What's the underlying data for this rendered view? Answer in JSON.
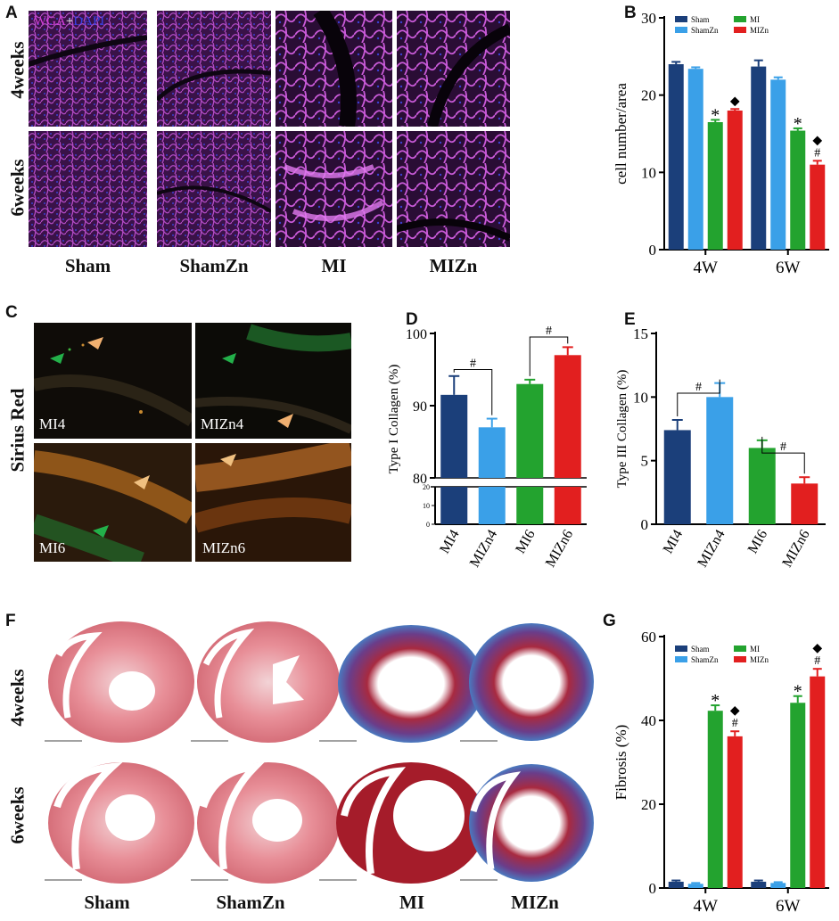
{
  "panel_letters": {
    "A": "A",
    "B": "B",
    "C": "C",
    "D": "D",
    "E": "E",
    "F": "F",
    "G": "G"
  },
  "panel_a": {
    "stain_label_wga": "WGA",
    "stain_label_plus": "+",
    "stain_label_dapi": "DAPI",
    "rows": [
      "4weeks",
      "6weeks"
    ],
    "columns": [
      "Sham",
      "ShamZn",
      "MI",
      "MIZn"
    ]
  },
  "panel_c": {
    "row_label": "Sirius Red",
    "tiles": [
      "MI4",
      "MIZn4",
      "MI6",
      "MIZn6"
    ]
  },
  "panel_f": {
    "rows": [
      "4weeks",
      "6weeks"
    ],
    "columns": [
      "Sham",
      "ShamZn",
      "MI",
      "MIZn"
    ]
  },
  "colors": {
    "sham": "#1b3f7a",
    "shamzn": "#3aa0e8",
    "mi": "#23a32f",
    "mizn": "#e21f1f"
  },
  "chart_data": [
    {
      "panel": "B",
      "type": "bar",
      "ylabel": "cell number/area",
      "ylim": [
        0,
        30
      ],
      "yticks": [
        0,
        10,
        20,
        30
      ],
      "categories": [
        "4W",
        "6W"
      ],
      "series": [
        {
          "name": "Sham",
          "values": [
            24.0,
            23.7
          ],
          "errors": [
            0.3,
            0.8
          ]
        },
        {
          "name": "ShamZn",
          "values": [
            23.4,
            22.0
          ],
          "errors": [
            0.2,
            0.3
          ]
        },
        {
          "name": "MI",
          "values": [
            16.5,
            15.4
          ],
          "errors": [
            0.3,
            0.3
          ]
        },
        {
          "name": "MIZn",
          "values": [
            18.0,
            11.0
          ],
          "errors": [
            0.2,
            0.5
          ]
        }
      ],
      "annotations": [
        {
          "category": "4W",
          "series": "MI",
          "marks": [
            "*"
          ]
        },
        {
          "category": "4W",
          "series": "MIZn",
          "marks": [
            "◆"
          ]
        },
        {
          "category": "6W",
          "series": "MI",
          "marks": [
            "*"
          ]
        },
        {
          "category": "6W",
          "series": "MIZn",
          "marks": [
            "#",
            "◆"
          ]
        }
      ],
      "legend_position": "top"
    },
    {
      "panel": "D",
      "type": "bar",
      "ylabel": "Type I Collagen (%)",
      "categories": [
        "MI4",
        "MIZn4",
        "MI6",
        "MIZn6"
      ],
      "values": [
        91.5,
        87.0,
        93.0,
        97.0
      ],
      "errors": [
        2.6,
        1.2,
        0.6,
        1.1
      ],
      "axis_break": true,
      "upper_ylim": [
        80,
        100
      ],
      "upper_yticks": [
        80,
        90,
        100
      ],
      "lower_ylim": [
        0,
        20
      ],
      "lower_yticks": [
        0,
        10,
        20
      ],
      "comparisons": [
        {
          "pair": [
            "MI4",
            "MIZn4"
          ],
          "mark": "#"
        },
        {
          "pair": [
            "MI6",
            "MIZn6"
          ],
          "mark": "#"
        }
      ]
    },
    {
      "panel": "E",
      "type": "bar",
      "ylabel": "Type III Collagen (%)",
      "categories": [
        "MI4",
        "MIZn4",
        "MI6",
        "MIZn6"
      ],
      "values": [
        7.4,
        10.0,
        6.0,
        3.2
      ],
      "errors": [
        0.8,
        1.1,
        0.6,
        0.5
      ],
      "ylim": [
        0,
        15
      ],
      "yticks": [
        0,
        5,
        10,
        15
      ],
      "comparisons": [
        {
          "pair": [
            "MI4",
            "MIZn4"
          ],
          "mark": "#"
        },
        {
          "pair": [
            "MI6",
            "MIZn6"
          ],
          "mark": "#"
        }
      ]
    },
    {
      "panel": "G",
      "type": "bar",
      "ylabel": "Fibrosis (%)",
      "ylim": [
        0,
        60
      ],
      "yticks": [
        0,
        20,
        40,
        60
      ],
      "categories": [
        "4W",
        "6W"
      ],
      "series": [
        {
          "name": "Sham",
          "values": [
            1.5,
            1.5
          ],
          "errors": [
            0.3,
            0.3
          ]
        },
        {
          "name": "ShamZn",
          "values": [
            1.0,
            1.2
          ],
          "errors": [
            0.2,
            0.2
          ]
        },
        {
          "name": "MI",
          "values": [
            42.3,
            44.2
          ],
          "errors": [
            1.3,
            1.6
          ]
        },
        {
          "name": "MIZn",
          "values": [
            36.2,
            50.5
          ],
          "errors": [
            1.2,
            1.8
          ]
        }
      ],
      "annotations": [
        {
          "category": "4W",
          "series": "MI",
          "marks": [
            "*"
          ]
        },
        {
          "category": "4W",
          "series": "MIZn",
          "marks": [
            "#",
            "◆"
          ]
        },
        {
          "category": "6W",
          "series": "MI",
          "marks": [
            "*"
          ]
        },
        {
          "category": "6W",
          "series": "MIZn",
          "marks": [
            "#",
            "◆"
          ]
        }
      ],
      "legend_position": "top"
    }
  ]
}
